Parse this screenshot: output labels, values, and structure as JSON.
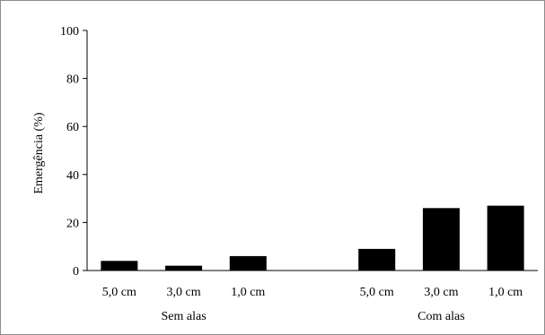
{
  "chart_data": {
    "type": "bar",
    "title": "",
    "xlabel": "",
    "ylabel": "Emergência (%)",
    "ylim": [
      0,
      100
    ],
    "yticks": [
      0,
      20,
      40,
      60,
      80,
      100
    ],
    "groups": [
      {
        "label": "Sem alas",
        "categories": [
          "5,0 cm",
          "3,0 cm",
          "1,0 cm"
        ],
        "values": [
          4,
          2,
          6
        ]
      },
      {
        "label": "Com alas",
        "categories": [
          "5,0 cm",
          "3,0 cm",
          "1,0 cm"
        ],
        "values": [
          9,
          26,
          27
        ]
      }
    ],
    "colors": {
      "bar": "#000000",
      "axis": "#000000",
      "frame": "#8c8c8c"
    },
    "grid": false,
    "legend": "none"
  }
}
